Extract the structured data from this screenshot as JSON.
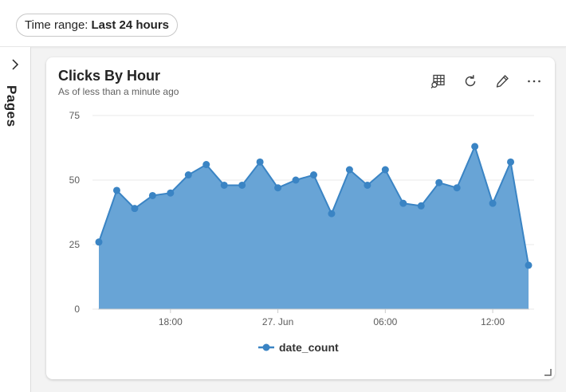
{
  "filter": {
    "label": "Time range:",
    "value": "Last 24 hours"
  },
  "pages": {
    "label": "Pages"
  },
  "card": {
    "title": "Clicks By Hour",
    "subtitle": "As of less than a minute ago",
    "actions": [
      "table-explore-icon",
      "refresh-icon",
      "edit-icon",
      "more-icon"
    ]
  },
  "colors": {
    "series": "#3a84c4",
    "area": "#68a4d6",
    "grid": "#e8e8e8"
  },
  "chart_data": {
    "type": "area",
    "title": "Clicks By Hour",
    "xlabel": "",
    "ylabel": "",
    "ylim": [
      0,
      75
    ],
    "y_ticks": [
      0,
      25,
      50,
      75
    ],
    "x_tick_labels": [
      {
        "label": "18:00",
        "index": 4
      },
      {
        "label": "27. Jun",
        "index": 10
      },
      {
        "label": "06:00",
        "index": 16
      },
      {
        "label": "12:00",
        "index": 22
      }
    ],
    "grid": true,
    "legend_position": "bottom-center",
    "series": [
      {
        "name": "date_count",
        "values": [
          26,
          46,
          39,
          44,
          45,
          52,
          56,
          48,
          48,
          57,
          47,
          50,
          52,
          37,
          54,
          48,
          54,
          41,
          40,
          49,
          47,
          63,
          41,
          57,
          17
        ]
      }
    ]
  }
}
